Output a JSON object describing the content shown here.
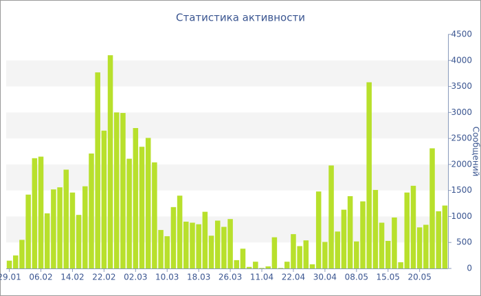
{
  "chart_data": {
    "type": "bar",
    "title": "Статистика активности",
    "y_axis_label": "Сообщений",
    "categories": [
      "29.01",
      null,
      null,
      null,
      null,
      "06.02",
      null,
      null,
      null,
      null,
      "14.02",
      null,
      null,
      null,
      null,
      "22.02",
      null,
      null,
      null,
      null,
      "02.03",
      null,
      null,
      null,
      null,
      "10.03",
      null,
      null,
      null,
      null,
      "18.03",
      null,
      null,
      null,
      null,
      "26.03",
      null,
      null,
      null,
      null,
      "11.04",
      null,
      null,
      null,
      null,
      "22.04",
      null,
      null,
      null,
      null,
      "30.04",
      null,
      null,
      null,
      null,
      "08.05",
      null,
      null,
      null,
      null,
      "15.05",
      null,
      null,
      null,
      null,
      "20.05",
      null,
      null,
      null,
      null
    ],
    "values": [
      150,
      250,
      550,
      1420,
      2120,
      2150,
      1060,
      1520,
      1560,
      1900,
      1460,
      1030,
      1580,
      2210,
      3770,
      2650,
      4100,
      3000,
      2990,
      2110,
      2700,
      2340,
      2510,
      2040,
      740,
      620,
      1180,
      1400,
      900,
      880,
      850,
      1090,
      630,
      920,
      800,
      950,
      160,
      380,
      30,
      130,
      10,
      40,
      600,
      10,
      130,
      660,
      430,
      540,
      80,
      1480,
      510,
      1980,
      710,
      1130,
      1390,
      520,
      1290,
      3580,
      1510,
      880,
      530,
      980,
      120,
      1460,
      1590,
      790,
      840,
      2310,
      1100,
      1210
    ],
    "color": "#b8e02c",
    "ylim": [
      0,
      4500
    ],
    "yticks": [
      0,
      500,
      1000,
      1500,
      2000,
      2500,
      3000,
      3500,
      4000,
      4500
    ],
    "y_axis_side": "right",
    "grid": "bands"
  }
}
